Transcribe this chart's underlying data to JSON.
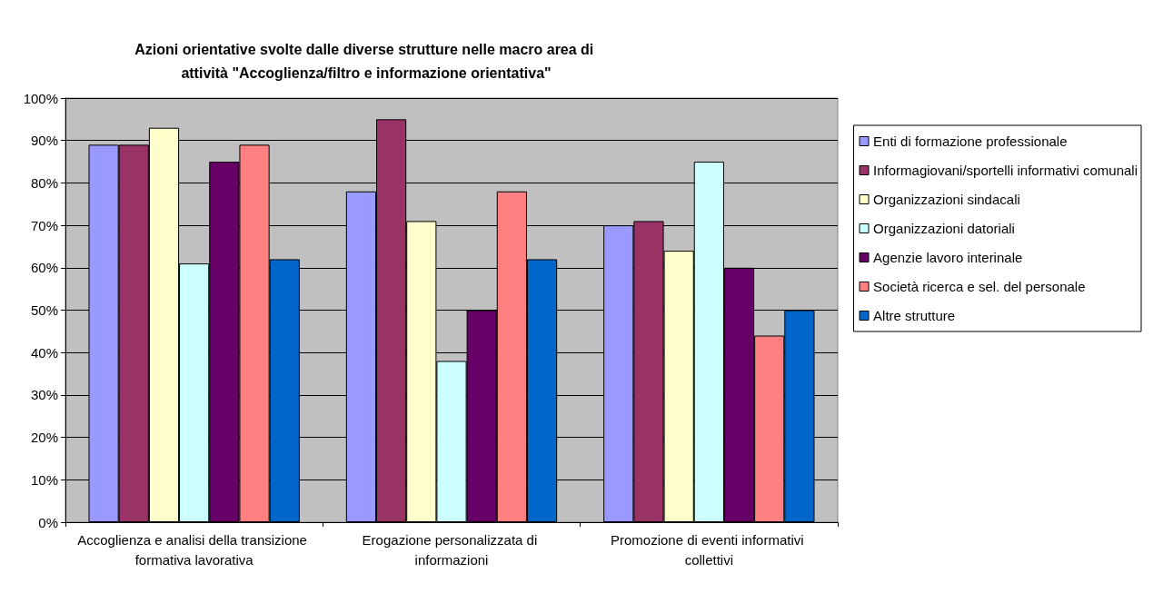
{
  "chart_data": {
    "type": "bar",
    "title": "Azioni orientative svolte dalle diverse strutture nelle macro area di attività \"Accoglienza/filtro e informazione orientativa\"",
    "categories": [
      "Accoglienza e analisi della transizione formativa lavorativa",
      "Erogazione personalizzata di informazioni",
      "Promozione di eventi informativi collettivi"
    ],
    "series": [
      {
        "name": "Enti di formazione professionale",
        "color": "#9999ff",
        "values": [
          89,
          78,
          70
        ]
      },
      {
        "name": "Informagiovani/sportelli informativi comunali",
        "color": "#993366",
        "values": [
          89,
          95,
          71
        ]
      },
      {
        "name": "Organizzazioni sindacali",
        "color": "#ffffcc",
        "values": [
          93,
          71,
          64
        ]
      },
      {
        "name": "Organizzazioni datoriali",
        "color": "#ccffff",
        "values": [
          61,
          38,
          85
        ]
      },
      {
        "name": "Agenzie lavoro interinale",
        "color": "#660066",
        "values": [
          85,
          50,
          60
        ]
      },
      {
        "name": "Società ricerca e sel. del personale",
        "color": "#ff8080",
        "values": [
          89,
          78,
          44
        ]
      },
      {
        "name": "Altre strutture",
        "color": "#0066cc",
        "values": [
          62,
          62,
          50
        ]
      }
    ],
    "ylim": [
      0,
      100
    ],
    "yticks": [
      {
        "value": 0,
        "label": "0%"
      },
      {
        "value": 10,
        "label": "10%"
      },
      {
        "value": 20,
        "label": "20%"
      },
      {
        "value": 30,
        "label": "30%"
      },
      {
        "value": 40,
        "label": "40%"
      },
      {
        "value": 50,
        "label": "50%"
      },
      {
        "value": 60,
        "label": "60%"
      },
      {
        "value": 70,
        "label": "70%"
      },
      {
        "value": 80,
        "label": "80%"
      },
      {
        "value": 90,
        "label": "90%"
      },
      {
        "value": 100,
        "label": "100%"
      }
    ],
    "grid": "y",
    "legend": "right"
  }
}
